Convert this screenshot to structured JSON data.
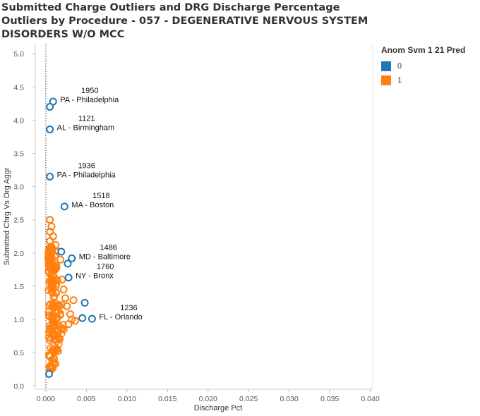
{
  "title": "Submitted Charge Outliers and DRG Discharge Percentage Outliers by Procedure - 057 - DEGENERATIVE NERVOUS SYSTEM DISORDERS W/O MCC",
  "legend": {
    "title": "Anom Svm 1 21 Pred",
    "items": [
      {
        "label": "0",
        "color": "#1f77b4"
      },
      {
        "label": "1",
        "color": "#ff7f0e"
      }
    ]
  },
  "chart_data": {
    "type": "scatter",
    "xlabel": "Discharge Pct",
    "ylabel": "Submitted Chrg Vs Drg Aggr",
    "xlim": [
      -0.0013,
      0.0403
    ],
    "ylim": [
      -0.05,
      5.15
    ],
    "x_ticks": [
      "0.000",
      "0.005",
      "0.010",
      "0.015",
      "0.020",
      "0.025",
      "0.030",
      "0.035",
      "0.040"
    ],
    "y_ticks": [
      "0.0",
      "0.5",
      "1.0",
      "1.5",
      "2.0",
      "2.5",
      "3.0",
      "3.5",
      "4.0",
      "4.5",
      "5.0"
    ],
    "reference_line_x": 0,
    "series": [
      {
        "name": "0",
        "color": "#1f77b4",
        "points": [
          {
            "x": 0.0009,
            "y": 4.28
          },
          {
            "x": 0.0005,
            "y": 4.2
          },
          {
            "x": 0.0005,
            "y": 3.86
          },
          {
            "x": 0.0005,
            "y": 3.15
          },
          {
            "x": 0.0023,
            "y": 2.7
          },
          {
            "x": 0.0019,
            "y": 2.02
          },
          {
            "x": 0.0032,
            "y": 1.92
          },
          {
            "x": 0.0027,
            "y": 1.84
          },
          {
            "x": 0.0028,
            "y": 1.63
          },
          {
            "x": 0.0048,
            "y": 1.25
          },
          {
            "x": 0.0045,
            "y": 1.02
          },
          {
            "x": 0.0057,
            "y": 1.01
          },
          {
            "x": 0.0004,
            "y": 0.18
          }
        ]
      },
      {
        "name": "1",
        "color": "#ff7f0e",
        "points": [
          {
            "x": 0.0005,
            "y": 2.5
          },
          {
            "x": 0.0007,
            "y": 2.4
          },
          {
            "x": 0.0005,
            "y": 2.32
          },
          {
            "x": 0.0009,
            "y": 2.25
          },
          {
            "x": 0.0005,
            "y": 2.18
          },
          {
            "x": 0.0012,
            "y": 2.12
          },
          {
            "x": 0.0015,
            "y": 2.02
          },
          {
            "x": 0.0018,
            "y": 1.9
          },
          {
            "x": 0.0013,
            "y": 1.78
          },
          {
            "x": 0.002,
            "y": 1.6
          },
          {
            "x": 0.0022,
            "y": 1.45
          },
          {
            "x": 0.0024,
            "y": 1.32
          },
          {
            "x": 0.0034,
            "y": 1.29
          },
          {
            "x": 0.0026,
            "y": 1.2
          },
          {
            "x": 0.003,
            "y": 1.08
          },
          {
            "x": 0.0032,
            "y": 1.0
          },
          {
            "x": 0.0036,
            "y": 0.98
          },
          {
            "x": 0.0028,
            "y": 0.93
          },
          {
            "x": 0.0022,
            "y": 0.85
          },
          {
            "x": 0.0017,
            "y": 0.7
          },
          {
            "x": 0.0014,
            "y": 0.55
          },
          {
            "x": 0.001,
            "y": 0.42
          },
          {
            "x": 0.0006,
            "y": 0.3
          },
          {
            "x": 0.0005,
            "y": 0.22
          }
        ],
        "cluster": {
          "x_min": 0.0003,
          "x_max": 0.003,
          "y_min": 0.25,
          "y_max": 2.1,
          "count": 160
        }
      }
    ],
    "annotations": [
      {
        "id": "1950",
        "label": "PA - Philadelphia",
        "x": 0.0009,
        "y": 4.28
      },
      {
        "id": "1121",
        "label": "AL - Birmingham",
        "x": 0.0005,
        "y": 3.86
      },
      {
        "id": "1936",
        "label": "PA - Philadelphia",
        "x": 0.0005,
        "y": 3.15
      },
      {
        "id": "1518",
        "label": "MA - Boston",
        "x": 0.0023,
        "y": 2.7
      },
      {
        "id": "1486",
        "label": "MD - Baltimore",
        "x": 0.0032,
        "y": 1.92
      },
      {
        "id": "1760",
        "label": "NY - Bronx",
        "x": 0.0028,
        "y": 1.63
      },
      {
        "id": "1236",
        "label": "FL - Orlando",
        "x": 0.0057,
        "y": 1.01
      }
    ]
  }
}
